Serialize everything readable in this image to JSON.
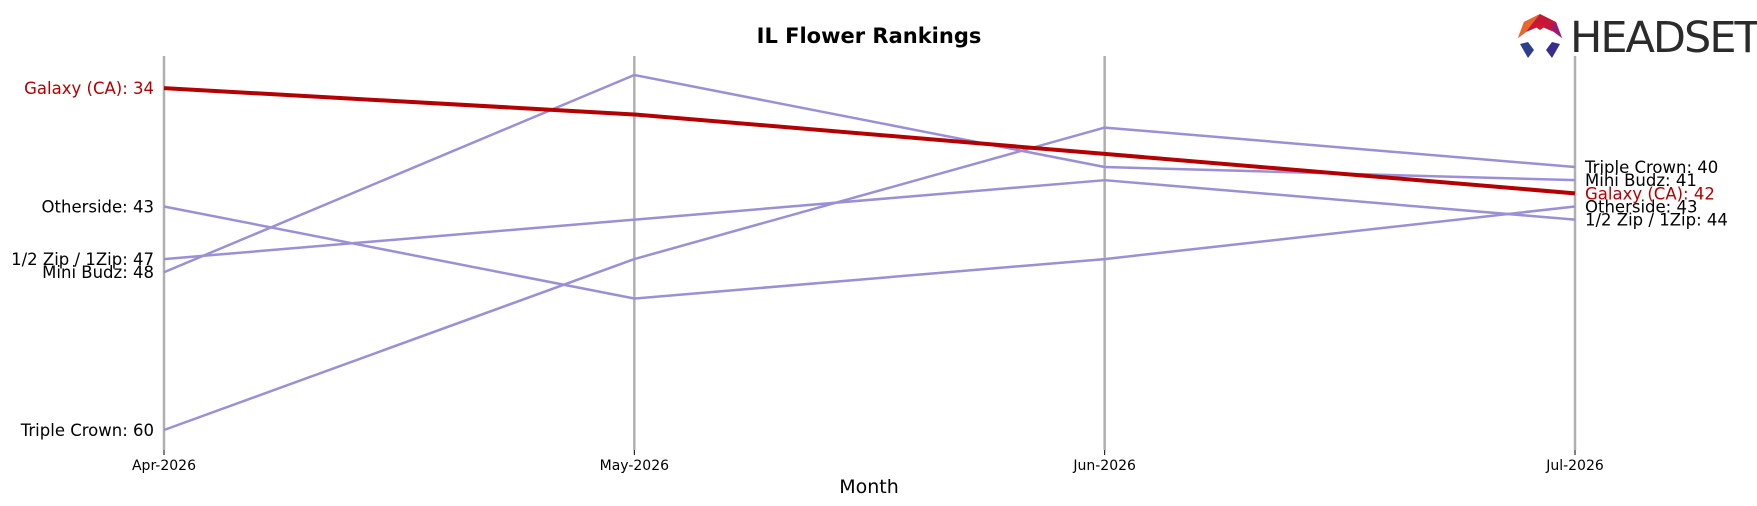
{
  "chart_data": {
    "type": "line",
    "title": "IL Flower Rankings",
    "xlabel": "Month",
    "ylabel": "",
    "x": [
      "Apr-2026",
      "May-2026",
      "Jun-2026",
      "Jul-2026"
    ],
    "y_inverted": true,
    "ylim": [
      33,
      60
    ],
    "grid": "vertical lines at each month",
    "legend": "none; series labeled at line ends",
    "highlight_color": "#b30000",
    "other_color": "#9b8fd6",
    "vertical_line_color": "#b0b0b0",
    "series": [
      {
        "name": "Galaxy (CA)",
        "values": [
          34,
          36,
          39,
          42
        ],
        "highlight": true
      },
      {
        "name": "Triple Crown",
        "values": [
          60,
          47,
          37,
          40
        ],
        "highlight": false
      },
      {
        "name": "Mini Budz",
        "values": [
          48,
          33,
          40,
          41
        ],
        "highlight": false
      },
      {
        "name": "Otherside",
        "values": [
          43,
          50,
          47,
          43
        ],
        "highlight": false
      },
      {
        "name": "1/2 Zip / 1Zip",
        "values": [
          47,
          44,
          41,
          44
        ],
        "highlight": false
      }
    ],
    "start_labels": [
      {
        "text": "Galaxy (CA): 34",
        "series": "Galaxy (CA)"
      },
      {
        "text": "Otherside: 43",
        "series": "Otherside"
      },
      {
        "text": "1/2 Zip / 1Zip: 47",
        "series": "1/2 Zip / 1Zip"
      },
      {
        "text": "Mini Budz: 48",
        "series": "Mini Budz"
      },
      {
        "text": "Triple Crown: 60",
        "series": "Triple Crown"
      }
    ],
    "end_labels": [
      {
        "text": "Triple Crown: 40",
        "series": "Triple Crown"
      },
      {
        "text": "Mini Budz: 41",
        "series": "Mini Budz"
      },
      {
        "text": "Galaxy (CA): 42",
        "series": "Galaxy (CA)"
      },
      {
        "text": "Otherside: 43",
        "series": "Otherside"
      },
      {
        "text": "1/2 Zip / 1Zip: 44",
        "series": "1/2 Zip / 1Zip"
      }
    ]
  },
  "logo": {
    "text": "HEADSET",
    "icon": "headset-hexagon-logo-icon"
  }
}
